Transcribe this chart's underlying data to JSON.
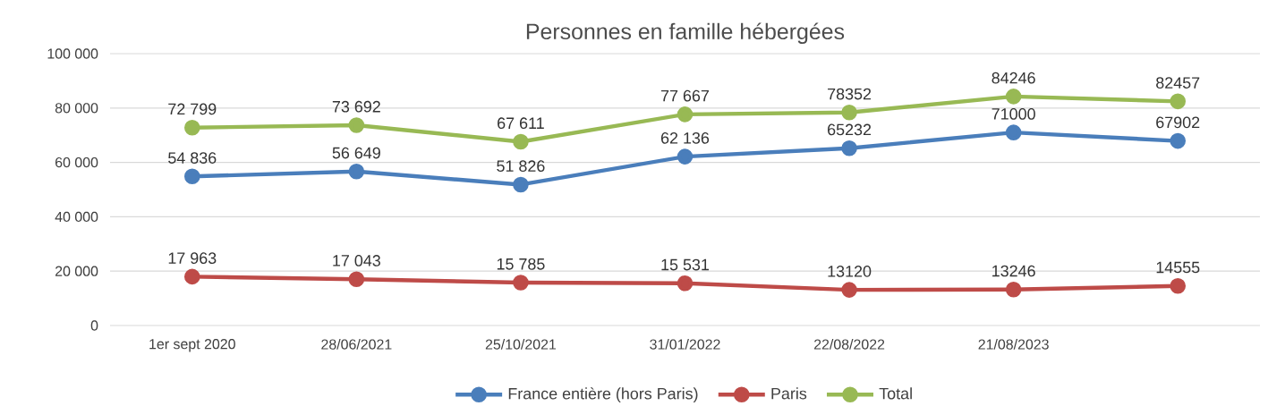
{
  "chart_data": {
    "type": "line",
    "title": "Personnes en famille hébergées",
    "categories": [
      "1er sept 2020",
      "28/06/2021",
      "25/10/2021",
      "31/01/2022",
      "22/08/2022",
      "21/08/2023",
      null
    ],
    "series": [
      {
        "name": "France entière (hors Paris)",
        "color": "#4a7ebb",
        "values": [
          54836,
          56649,
          51826,
          62136,
          65232,
          71000,
          67902
        ],
        "value_labels": [
          "54 836",
          "56 649",
          "51 826",
          "62 136",
          "65232",
          "71000",
          "67902"
        ]
      },
      {
        "name": "Paris",
        "color": "#be4b48",
        "values": [
          17963,
          17043,
          15785,
          15531,
          13120,
          13246,
          14555
        ],
        "value_labels": [
          "17 963",
          "17 043",
          "15 785",
          "15 531",
          "13120",
          "13246",
          "14555"
        ]
      },
      {
        "name": "Total",
        "color": "#98b954",
        "values": [
          72799,
          73692,
          67611,
          77667,
          78352,
          84246,
          82457
        ],
        "value_labels": [
          "72 799",
          "73 692",
          "67 611",
          "77 667",
          "78352",
          "84246",
          "82457"
        ]
      }
    ],
    "ylim": [
      0,
      100000
    ],
    "yticks": [
      0,
      {
        "value": 20000,
        "label": "20 000"
      },
      {
        "value": 40000,
        "label": "40 000"
      },
      {
        "value": 60000,
        "label": "60 000"
      },
      {
        "value": 80000,
        "label": "80 000"
      },
      {
        "value": 100000,
        "label": "100 000"
      }
    ],
    "grid": "y",
    "legend": "bottom",
    "marker": "circle",
    "line_style": "solid"
  }
}
